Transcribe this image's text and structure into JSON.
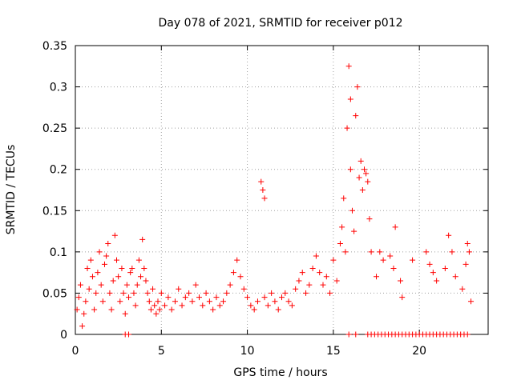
{
  "chart_data": {
    "type": "scatter",
    "title": "Day 078 of 2021, SRMTID for receiver p012",
    "xlabel": "GPS time / hours",
    "ylabel": "SRMTID / TECUs",
    "xlim": [
      0,
      24
    ],
    "ylim": [
      0,
      0.35
    ],
    "x_ticks": [
      0,
      5,
      10,
      15,
      20
    ],
    "x_tick_labels": [
      "0",
      "5",
      "10",
      "15",
      "20"
    ],
    "y_ticks": [
      0,
      0.05,
      0.1,
      0.15,
      0.2,
      0.25,
      0.3,
      0.35
    ],
    "y_tick_labels": [
      "0",
      "0.05",
      "0.1",
      "0.15",
      "0.2",
      "0.25",
      "0.3",
      "0.35"
    ],
    "grid": true,
    "series": [
      {
        "name": "SRMTID",
        "color": "#ff0000",
        "marker": "plus",
        "points": [
          [
            0.1,
            0.03
          ],
          [
            0.2,
            0.045
          ],
          [
            0.3,
            0.06
          ],
          [
            0.4,
            0.01
          ],
          [
            0.5,
            0.025
          ],
          [
            0.6,
            0.04
          ],
          [
            0.7,
            0.08
          ],
          [
            0.8,
            0.055
          ],
          [
            0.9,
            0.09
          ],
          [
            1.0,
            0.07
          ],
          [
            1.1,
            0.03
          ],
          [
            1.2,
            0.05
          ],
          [
            1.3,
            0.075
          ],
          [
            1.4,
            0.1
          ],
          [
            1.5,
            0.06
          ],
          [
            1.6,
            0.04
          ],
          [
            1.7,
            0.085
          ],
          [
            1.8,
            0.095
          ],
          [
            1.9,
            0.11
          ],
          [
            2.0,
            0.05
          ],
          [
            2.1,
            0.03
          ],
          [
            2.2,
            0.065
          ],
          [
            2.3,
            0.12
          ],
          [
            2.4,
            0.09
          ],
          [
            2.5,
            0.07
          ],
          [
            2.6,
            0.04
          ],
          [
            2.7,
            0.08
          ],
          [
            2.8,
            0.05
          ],
          [
            2.9,
            0.025
          ],
          [
            3.0,
            0.06
          ],
          [
            3.1,
            0.045
          ],
          [
            3.2,
            0.075
          ],
          [
            3.3,
            0.08
          ],
          [
            3.4,
            0.05
          ],
          [
            3.5,
            0.035
          ],
          [
            3.6,
            0.06
          ],
          [
            3.7,
            0.09
          ],
          [
            3.8,
            0.07
          ],
          [
            3.9,
            0.115
          ],
          [
            4.0,
            0.08
          ],
          [
            4.1,
            0.065
          ],
          [
            4.2,
            0.05
          ],
          [
            4.3,
            0.04
          ],
          [
            4.4,
            0.03
          ],
          [
            4.5,
            0.055
          ],
          [
            4.6,
            0.035
          ],
          [
            4.7,
            0.025
          ],
          [
            4.8,
            0.04
          ],
          [
            4.9,
            0.03
          ],
          [
            5.0,
            0.05
          ],
          [
            5.2,
            0.035
          ],
          [
            5.4,
            0.045
          ],
          [
            5.6,
            0.03
          ],
          [
            5.8,
            0.04
          ],
          [
            6.0,
            0.055
          ],
          [
            6.2,
            0.035
          ],
          [
            6.4,
            0.045
          ],
          [
            6.6,
            0.05
          ],
          [
            6.8,
            0.04
          ],
          [
            7.0,
            0.06
          ],
          [
            7.2,
            0.045
          ],
          [
            7.4,
            0.035
          ],
          [
            7.6,
            0.05
          ],
          [
            7.8,
            0.04
          ],
          [
            8.0,
            0.03
          ],
          [
            8.2,
            0.045
          ],
          [
            8.4,
            0.035
          ],
          [
            8.6,
            0.04
          ],
          [
            8.8,
            0.05
          ],
          [
            9.0,
            0.06
          ],
          [
            9.2,
            0.075
          ],
          [
            9.4,
            0.09
          ],
          [
            9.6,
            0.07
          ],
          [
            9.8,
            0.055
          ],
          [
            10.0,
            0.045
          ],
          [
            10.2,
            0.035
          ],
          [
            10.4,
            0.03
          ],
          [
            10.6,
            0.04
          ],
          [
            10.8,
            0.185
          ],
          [
            10.9,
            0.175
          ],
          [
            11.0,
            0.165
          ],
          [
            11.0,
            0.045
          ],
          [
            11.2,
            0.035
          ],
          [
            11.4,
            0.05
          ],
          [
            11.6,
            0.04
          ],
          [
            11.8,
            0.03
          ],
          [
            12.0,
            0.045
          ],
          [
            12.2,
            0.05
          ],
          [
            12.4,
            0.04
          ],
          [
            12.6,
            0.035
          ],
          [
            12.8,
            0.055
          ],
          [
            13.0,
            0.065
          ],
          [
            13.2,
            0.075
          ],
          [
            13.4,
            0.05
          ],
          [
            13.6,
            0.06
          ],
          [
            13.8,
            0.08
          ],
          [
            14.0,
            0.095
          ],
          [
            14.2,
            0.075
          ],
          [
            14.4,
            0.06
          ],
          [
            14.6,
            0.07
          ],
          [
            14.8,
            0.05
          ],
          [
            15.0,
            0.09
          ],
          [
            15.2,
            0.065
          ],
          [
            15.4,
            0.11
          ],
          [
            15.5,
            0.13
          ],
          [
            15.6,
            0.165
          ],
          [
            15.7,
            0.1
          ],
          [
            15.8,
            0.25
          ],
          [
            15.9,
            0.325
          ],
          [
            16.0,
            0.285
          ],
          [
            16.0,
            0.2
          ],
          [
            16.1,
            0.15
          ],
          [
            16.2,
            0.125
          ],
          [
            16.3,
            0.265
          ],
          [
            16.4,
            0.3
          ],
          [
            16.5,
            0.19
          ],
          [
            16.6,
            0.21
          ],
          [
            16.7,
            0.175
          ],
          [
            16.8,
            0.2
          ],
          [
            16.9,
            0.195
          ],
          [
            17.0,
            0.185
          ],
          [
            17.1,
            0.14
          ],
          [
            17.2,
            0.1
          ],
          [
            17.5,
            0.07
          ],
          [
            17.7,
            0.1
          ],
          [
            17.9,
            0.09
          ],
          [
            18.3,
            0.095
          ],
          [
            18.5,
            0.08
          ],
          [
            18.6,
            0.13
          ],
          [
            18.9,
            0.065
          ],
          [
            19.0,
            0.045
          ],
          [
            19.6,
            0.09
          ],
          [
            20.4,
            0.1
          ],
          [
            20.6,
            0.085
          ],
          [
            20.8,
            0.075
          ],
          [
            21.0,
            0.065
          ],
          [
            21.5,
            0.08
          ],
          [
            21.7,
            0.12
          ],
          [
            21.9,
            0.1
          ],
          [
            22.1,
            0.07
          ],
          [
            22.5,
            0.055
          ],
          [
            22.7,
            0.085
          ],
          [
            22.8,
            0.11
          ],
          [
            22.9,
            0.1
          ],
          [
            23.0,
            0.04
          ]
        ]
      }
    ],
    "zero_markers_x": [
      2.9,
      3.1,
      15.9,
      16.3,
      17.0,
      17.2,
      17.4,
      17.6,
      17.8,
      18.0,
      18.2,
      18.4,
      18.6,
      18.8,
      19.0,
      19.2,
      19.4,
      19.6,
      19.8,
      20.0,
      20.2,
      20.4,
      20.6,
      20.8,
      21.0,
      21.2,
      21.4,
      21.6,
      21.8,
      22.0,
      22.2,
      22.4,
      22.6,
      22.8
    ]
  }
}
